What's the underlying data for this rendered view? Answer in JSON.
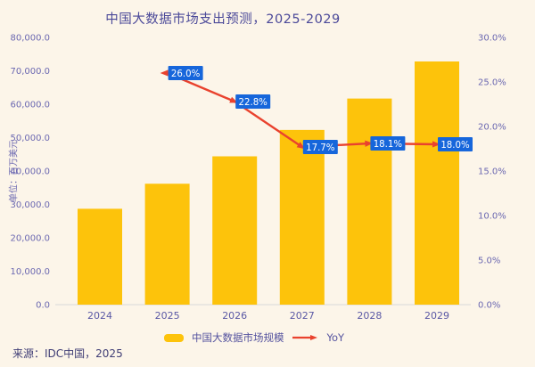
{
  "title": "中国大数据市场支出预测，2025-2029",
  "source": "来源：IDC中国，2025",
  "y_axis": {
    "unit": "单位：百万美元"
  },
  "legend": {
    "bar_label": "中国大数据市场规模",
    "line_label": "YoY"
  },
  "colors": {
    "background": "#FCF5E9",
    "bar": "#FDC30B",
    "line": "#E9422E",
    "label_box": "#1666DB",
    "label_text": "#FFFFFF",
    "title_text": "#4B4999",
    "axis_text": "#6B68B1",
    "x_axis_text": "#5B59A5",
    "source_text": "#3F3D75",
    "baseline": "#D9D9D9"
  },
  "chart_data": {
    "type": "bar",
    "subtype": "bar-line-combo",
    "title": "中国大数据市场支出预测，2025-2029",
    "categories": [
      "2024",
      "2025",
      "2026",
      "2027",
      "2028",
      "2029"
    ],
    "series": [
      {
        "name": "中国大数据市场规模",
        "type": "bar",
        "axis": "left",
        "values": [
          28700,
          36200,
          44400,
          52300,
          61700,
          72800
        ]
      },
      {
        "name": "YoY",
        "type": "line",
        "axis": "right",
        "categories": [
          "2025",
          "2026",
          "2027",
          "2028",
          "2029"
        ],
        "values": [
          26.0,
          22.8,
          17.7,
          18.1,
          18.0
        ],
        "labels": [
          "26.0%",
          "22.8%",
          "17.7%",
          "18.1%",
          "18.0%"
        ]
      }
    ],
    "left_axis": {
      "title": "单位：百万美元",
      "min": 0,
      "max": 80000,
      "ticks": [
        "80,000.0",
        "70,000.0",
        "60,000.0",
        "50,000.0",
        "40,000.0",
        "30,000.0",
        "20,000.0",
        "10,000.0",
        "0.0"
      ]
    },
    "right_axis": {
      "min": 0,
      "max": 30,
      "ticks": [
        "30.0%",
        "25.0%",
        "20.0%",
        "15.0%",
        "10.0%",
        "5.0%",
        "0.0%"
      ]
    },
    "grid": false,
    "legend_position": "bottom"
  }
}
